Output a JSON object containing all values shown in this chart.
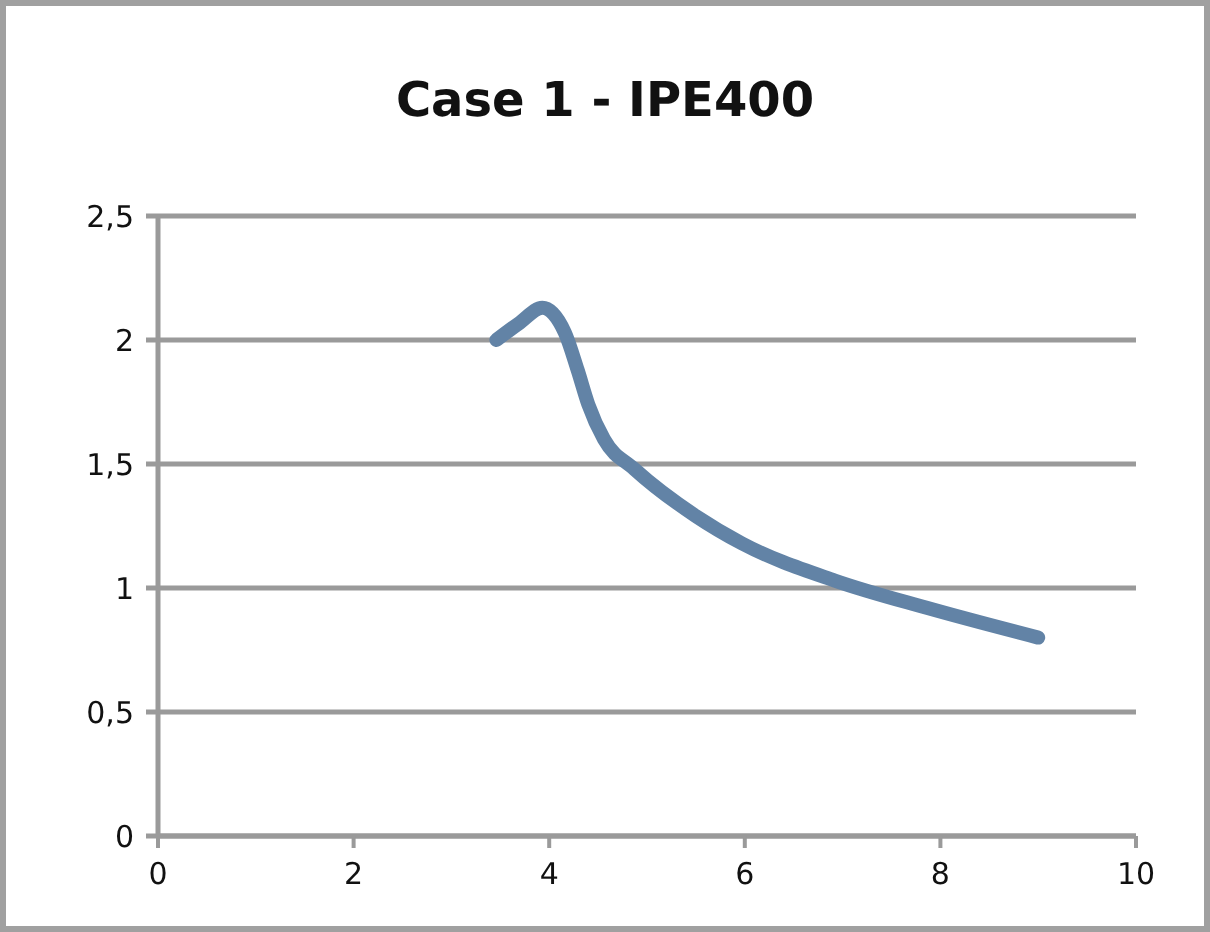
{
  "chart_data": {
    "type": "line",
    "title": "Case 1 - IPE400",
    "series": [
      {
        "color": "#6283a6",
        "x": [
          3.46,
          3.7,
          3.93,
          4.16,
          4.29,
          4.4,
          4.56,
          4.87,
          5.5,
          5.97,
          6.92,
          7.86,
          9.0
        ],
        "values": [
          2.0,
          2.07,
          2.13,
          2.03,
          1.88,
          1.74,
          1.6,
          1.48,
          1.29,
          1.18,
          1.03,
          0.92,
          0.8
        ]
      }
    ],
    "xlim": [
      0,
      10
    ],
    "xticks": [
      0,
      2,
      4,
      6,
      8,
      10
    ],
    "ylim": [
      0,
      2.5
    ],
    "yticks": [
      {
        "value": 0,
        "label": "0"
      },
      {
        "value": 0.5,
        "label": "0,5"
      },
      {
        "value": 1,
        "label": "1"
      },
      {
        "value": 1.5,
        "label": "1,5"
      },
      {
        "value": 2,
        "label": "2"
      },
      {
        "value": 2.5,
        "label": "2,5"
      }
    ],
    "grid": "y",
    "marker": "none",
    "line_style": "solid"
  }
}
